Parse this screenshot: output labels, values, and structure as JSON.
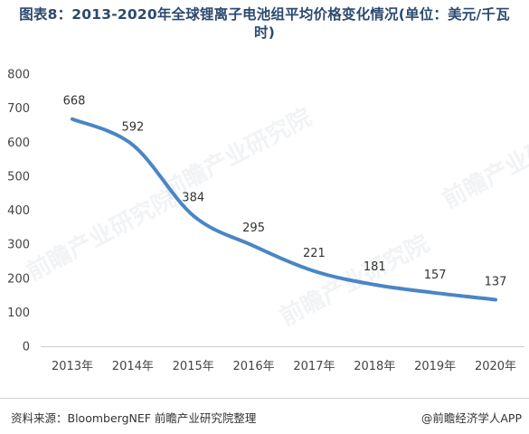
{
  "chart_data": {
    "type": "line",
    "title": "图表8：2013-2020年全球锂离子电池组平均价格变化情况(单位：美元/千瓦\n时)",
    "categories": [
      "2013年",
      "2014年",
      "2015年",
      "2016年",
      "2017年",
      "2018年",
      "2019年",
      "2020年"
    ],
    "values": [
      668,
      592,
      384,
      295,
      221,
      181,
      157,
      137
    ],
    "data_labels": [
      "668",
      "592",
      "384",
      "295",
      "221",
      "181",
      "157",
      "137"
    ],
    "yticks": [
      "0",
      "100",
      "200",
      "300",
      "400",
      "500",
      "600",
      "700",
      "800"
    ],
    "ylim": [
      0,
      800
    ],
    "grid": false,
    "line_color": "#4a86c5"
  },
  "footer": {
    "source": "资料来源：BloombergNEF 前瞻产业研究院整理",
    "credit": "@前瞻经济学人APP"
  },
  "watermark": "前瞻产业研究院"
}
